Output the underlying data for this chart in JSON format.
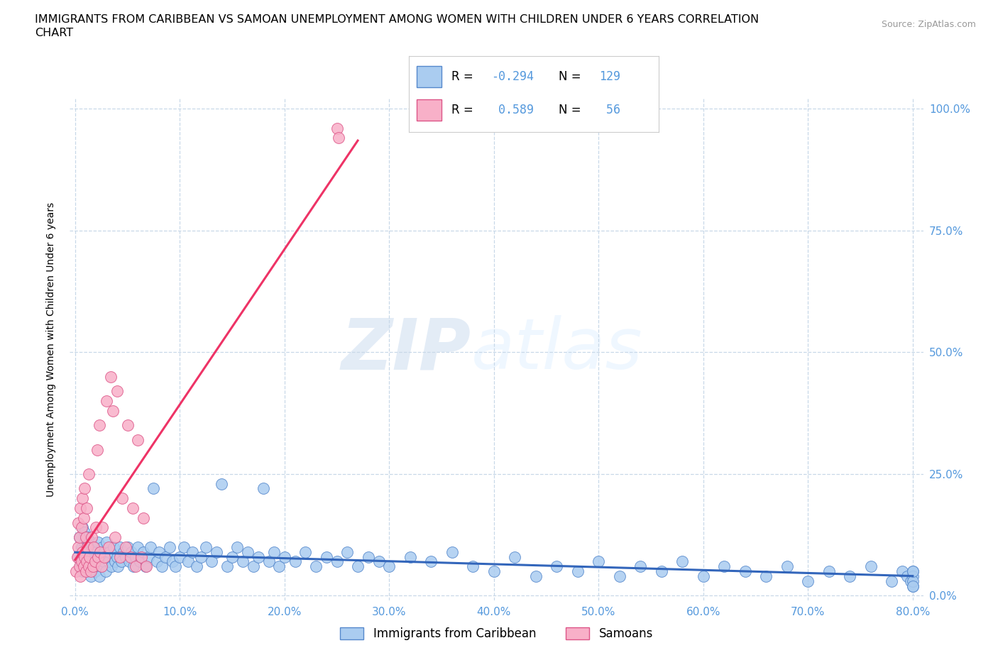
{
  "title_line1": "IMMIGRANTS FROM CARIBBEAN VS SAMOAN UNEMPLOYMENT AMONG WOMEN WITH CHILDREN UNDER 6 YEARS CORRELATION",
  "title_line2": "CHART",
  "source": "Source: ZipAtlas.com",
  "ylabel": "Unemployment Among Women with Children Under 6 years",
  "xlim": [
    0.0,
    0.8
  ],
  "ylim": [
    0.0,
    1.0
  ],
  "xticks": [
    0.0,
    0.1,
    0.2,
    0.3,
    0.4,
    0.5,
    0.6,
    0.7,
    0.8
  ],
  "xticklabels": [
    "0.0%",
    "10.0%",
    "20.0%",
    "30.0%",
    "40.0%",
    "50.0%",
    "60.0%",
    "70.0%",
    "80.0%"
  ],
  "yticks": [
    0.0,
    0.25,
    0.5,
    0.75,
    1.0
  ],
  "yticklabels": [
    "0.0%",
    "25.0%",
    "50.0%",
    "75.0%",
    "100.0%"
  ],
  "tick_color": "#5599dd",
  "grid_color": "#c8d8e8",
  "watermark_zip": "ZIP",
  "watermark_atlas": "atlas",
  "series": [
    {
      "name": "Immigrants from Caribbean",
      "face_color": "#aaccf0",
      "edge_color": "#5588cc",
      "trend_color": "#3366bb",
      "R": -0.294,
      "N": 129,
      "x": [
        0.003,
        0.004,
        0.005,
        0.006,
        0.007,
        0.007,
        0.008,
        0.008,
        0.009,
        0.009,
        0.01,
        0.01,
        0.011,
        0.012,
        0.012,
        0.013,
        0.014,
        0.015,
        0.015,
        0.016,
        0.017,
        0.018,
        0.019,
        0.02,
        0.021,
        0.022,
        0.023,
        0.024,
        0.025,
        0.026,
        0.027,
        0.028,
        0.029,
        0.03,
        0.032,
        0.033,
        0.035,
        0.037,
        0.038,
        0.04,
        0.041,
        0.043,
        0.044,
        0.046,
        0.048,
        0.05,
        0.052,
        0.054,
        0.056,
        0.058,
        0.06,
        0.062,
        0.065,
        0.067,
        0.07,
        0.072,
        0.075,
        0.078,
        0.08,
        0.083,
        0.086,
        0.09,
        0.093,
        0.096,
        0.1,
        0.104,
        0.108,
        0.112,
        0.116,
        0.12,
        0.125,
        0.13,
        0.135,
        0.14,
        0.145,
        0.15,
        0.155,
        0.16,
        0.165,
        0.17,
        0.175,
        0.18,
        0.185,
        0.19,
        0.195,
        0.2,
        0.21,
        0.22,
        0.23,
        0.24,
        0.25,
        0.26,
        0.27,
        0.28,
        0.29,
        0.3,
        0.32,
        0.34,
        0.36,
        0.38,
        0.4,
        0.42,
        0.44,
        0.46,
        0.48,
        0.5,
        0.52,
        0.54,
        0.56,
        0.58,
        0.6,
        0.62,
        0.64,
        0.66,
        0.68,
        0.7,
        0.72,
        0.74,
        0.76,
        0.78,
        0.79,
        0.795,
        0.798,
        0.8,
        0.8,
        0.8,
        0.8,
        0.8,
        0.8
      ],
      "y": [
        0.08,
        0.12,
        0.06,
        0.1,
        0.05,
        0.14,
        0.09,
        0.07,
        0.11,
        0.13,
        0.08,
        0.06,
        0.1,
        0.05,
        0.12,
        0.07,
        0.09,
        0.11,
        0.04,
        0.08,
        0.06,
        0.1,
        0.05,
        0.09,
        0.07,
        0.11,
        0.04,
        0.08,
        0.06,
        0.1,
        0.07,
        0.09,
        0.05,
        0.11,
        0.07,
        0.09,
        0.06,
        0.1,
        0.07,
        0.08,
        0.06,
        0.1,
        0.07,
        0.09,
        0.08,
        0.1,
        0.07,
        0.09,
        0.06,
        0.08,
        0.1,
        0.07,
        0.09,
        0.06,
        0.08,
        0.1,
        0.22,
        0.07,
        0.09,
        0.06,
        0.08,
        0.1,
        0.07,
        0.06,
        0.08,
        0.1,
        0.07,
        0.09,
        0.06,
        0.08,
        0.1,
        0.07,
        0.09,
        0.23,
        0.06,
        0.08,
        0.1,
        0.07,
        0.09,
        0.06,
        0.08,
        0.22,
        0.07,
        0.09,
        0.06,
        0.08,
        0.07,
        0.09,
        0.06,
        0.08,
        0.07,
        0.09,
        0.06,
        0.08,
        0.07,
        0.06,
        0.08,
        0.07,
        0.09,
        0.06,
        0.05,
        0.08,
        0.04,
        0.06,
        0.05,
        0.07,
        0.04,
        0.06,
        0.05,
        0.07,
        0.04,
        0.06,
        0.05,
        0.04,
        0.06,
        0.03,
        0.05,
        0.04,
        0.06,
        0.03,
        0.05,
        0.04,
        0.03,
        0.05,
        0.02,
        0.04,
        0.03,
        0.05,
        0.02
      ]
    },
    {
      "name": "Samoans",
      "face_color": "#f8b0c8",
      "edge_color": "#dd5588",
      "trend_color": "#ee3366",
      "R": 0.589,
      "N": 56,
      "x": [
        0.001,
        0.002,
        0.003,
        0.003,
        0.004,
        0.004,
        0.005,
        0.005,
        0.006,
        0.006,
        0.007,
        0.007,
        0.008,
        0.008,
        0.009,
        0.009,
        0.01,
        0.01,
        0.011,
        0.011,
        0.012,
        0.013,
        0.013,
        0.014,
        0.015,
        0.016,
        0.017,
        0.018,
        0.019,
        0.02,
        0.021,
        0.022,
        0.023,
        0.024,
        0.025,
        0.026,
        0.028,
        0.03,
        0.032,
        0.034,
        0.036,
        0.038,
        0.04,
        0.043,
        0.045,
        0.048,
        0.05,
        0.053,
        0.055,
        0.058,
        0.06,
        0.063,
        0.065,
        0.068,
        0.25,
        0.252
      ],
      "y": [
        0.05,
        0.08,
        0.1,
        0.15,
        0.06,
        0.12,
        0.04,
        0.18,
        0.07,
        0.14,
        0.09,
        0.2,
        0.06,
        0.16,
        0.08,
        0.22,
        0.05,
        0.12,
        0.07,
        0.18,
        0.1,
        0.06,
        0.25,
        0.08,
        0.05,
        0.12,
        0.06,
        0.1,
        0.07,
        0.14,
        0.3,
        0.08,
        0.35,
        0.09,
        0.06,
        0.14,
        0.08,
        0.4,
        0.1,
        0.45,
        0.38,
        0.12,
        0.42,
        0.08,
        0.2,
        0.1,
        0.35,
        0.08,
        0.18,
        0.06,
        0.32,
        0.08,
        0.16,
        0.06,
        0.96,
        0.94
      ]
    }
  ]
}
